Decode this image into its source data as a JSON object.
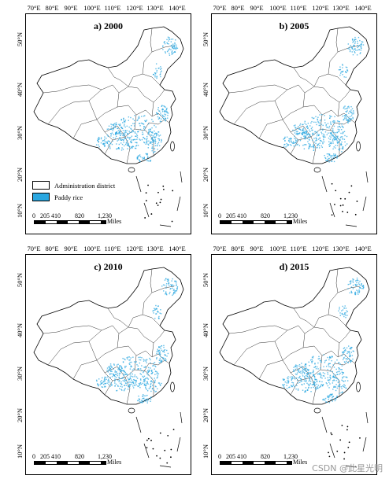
{
  "panels": [
    {
      "title": "a) 2000"
    },
    {
      "title": "b) 2005"
    },
    {
      "title": "c) 2010"
    },
    {
      "title": "d) 2015"
    }
  ],
  "lon_ticks": [
    "70°E",
    "80°E",
    "90°E",
    "100°E",
    "110°E",
    "120°E",
    "130°E",
    "140°E"
  ],
  "lat_ticks": [
    "50°N",
    "40°N",
    "30°N",
    "20°N",
    "10°N"
  ],
  "legend": {
    "items": [
      {
        "label": "Administration district",
        "color": "#ffffff"
      },
      {
        "label": "Paddy rice",
        "color": "#2aa7e0"
      }
    ]
  },
  "scalebar": {
    "ticks": [
      "0",
      "205",
      "410",
      "820",
      "1,230"
    ],
    "unit": "Miles"
  },
  "colors": {
    "rice": "#2aa7e0",
    "boundary": "#000000"
  },
  "watermark": "CSDN @此星光明"
}
